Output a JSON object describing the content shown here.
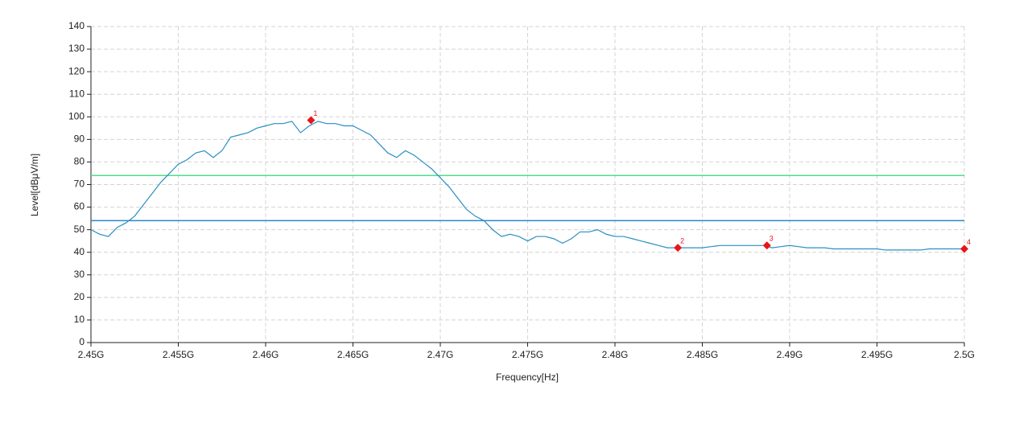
{
  "chart_data": {
    "type": "line",
    "xlabel": "Frequency[Hz]",
    "ylabel": "Level[dBμV/m]",
    "xlim": [
      2450000000,
      2500000000
    ],
    "ylim": [
      0,
      140
    ],
    "xticks": [
      {
        "value": 2450000000,
        "label": "2.45G"
      },
      {
        "value": 2455000000,
        "label": "2.455G"
      },
      {
        "value": 2460000000,
        "label": "2.46G"
      },
      {
        "value": 2465000000,
        "label": "2.465G"
      },
      {
        "value": 2470000000,
        "label": "2.47G"
      },
      {
        "value": 2475000000,
        "label": "2.475G"
      },
      {
        "value": 2480000000,
        "label": "2.48G"
      },
      {
        "value": 2485000000,
        "label": "2.485G"
      },
      {
        "value": 2490000000,
        "label": "2.49G"
      },
      {
        "value": 2495000000,
        "label": "2.495G"
      },
      {
        "value": 2500000000,
        "label": "2.5G"
      }
    ],
    "yticks": [
      0,
      10,
      20,
      30,
      40,
      50,
      60,
      70,
      80,
      90,
      100,
      110,
      120,
      130,
      140
    ],
    "grid": true,
    "x": [
      2450000000,
      2450500000,
      2451000000,
      2451500000,
      2452000000,
      2452500000,
      2453000000,
      2453500000,
      2454000000,
      2454500000,
      2455000000,
      2455500000,
      2456000000,
      2456500000,
      2457000000,
      2457500000,
      2458000000,
      2458500000,
      2459000000,
      2459500000,
      2460000000,
      2460500000,
      2461000000,
      2461500000,
      2462000000,
      2462500000,
      2463000000,
      2463500000,
      2464000000,
      2464500000,
      2465000000,
      2465500000,
      2466000000,
      2466500000,
      2467000000,
      2467500000,
      2468000000,
      2468500000,
      2469000000,
      2469500000,
      2470000000,
      2470500000,
      2471000000,
      2471500000,
      2472000000,
      2472500000,
      2473000000,
      2473500000,
      2474000000,
      2474500000,
      2475000000,
      2475500000,
      2476000000,
      2476500000,
      2477000000,
      2477500000,
      2478000000,
      2478500000,
      2479000000,
      2479500000,
      2480000000,
      2480500000,
      2481000000,
      2481500000,
      2482000000,
      2482500000,
      2483000000,
      2483500000,
      2484000000,
      2484500000,
      2485000000,
      2485500000,
      2486000000,
      2486500000,
      2487000000,
      2487500000,
      2488000000,
      2488500000,
      2489000000,
      2489500000,
      2490000000,
      2490500000,
      2491000000,
      2491500000,
      2492000000,
      2492500000,
      2493000000,
      2493500000,
      2494000000,
      2494500000,
      2495000000,
      2495500000,
      2496000000,
      2496500000,
      2497000000,
      2497500000,
      2498000000,
      2498500000,
      2499000000,
      2499500000,
      2500000000
    ],
    "series": [
      {
        "color": "#2a8fc4",
        "values": [
          50,
          48,
          47,
          51,
          53,
          56,
          61,
          66,
          71,
          75,
          79,
          81,
          84,
          85,
          82,
          85,
          91,
          92,
          93,
          95,
          96,
          97,
          97,
          98,
          93,
          96,
          98,
          97,
          97,
          96,
          96,
          94,
          92,
          88,
          84,
          82,
          85,
          83,
          80,
          77,
          73,
          69,
          64,
          59,
          56,
          54,
          50,
          47,
          48,
          47,
          45,
          47,
          47,
          46,
          44,
          46,
          49,
          49,
          50,
          48,
          47,
          47,
          46,
          45,
          44,
          43,
          42,
          42,
          42,
          42,
          42,
          42.5,
          43,
          43,
          43,
          43,
          43,
          43,
          42,
          42.5,
          43,
          42.5,
          42,
          42,
          42,
          41.5,
          41.5,
          41.5,
          41.5,
          41.5,
          41.5,
          41,
          41,
          41,
          41,
          41,
          41.5,
          41.5,
          41.5,
          41.5,
          41.5
        ]
      }
    ],
    "limit_lines": [
      {
        "value": 74,
        "color": "#4fdc8e"
      },
      {
        "value": 54,
        "color": "#2a88c8"
      }
    ],
    "markers": {
      "color": "#e8141a",
      "labels": [
        "1",
        "2",
        "3",
        "4"
      ],
      "x": [
        2462600000,
        2483600000,
        2488700000,
        2500000000
      ],
      "values": [
        98.5,
        42,
        43,
        41.5
      ]
    }
  }
}
